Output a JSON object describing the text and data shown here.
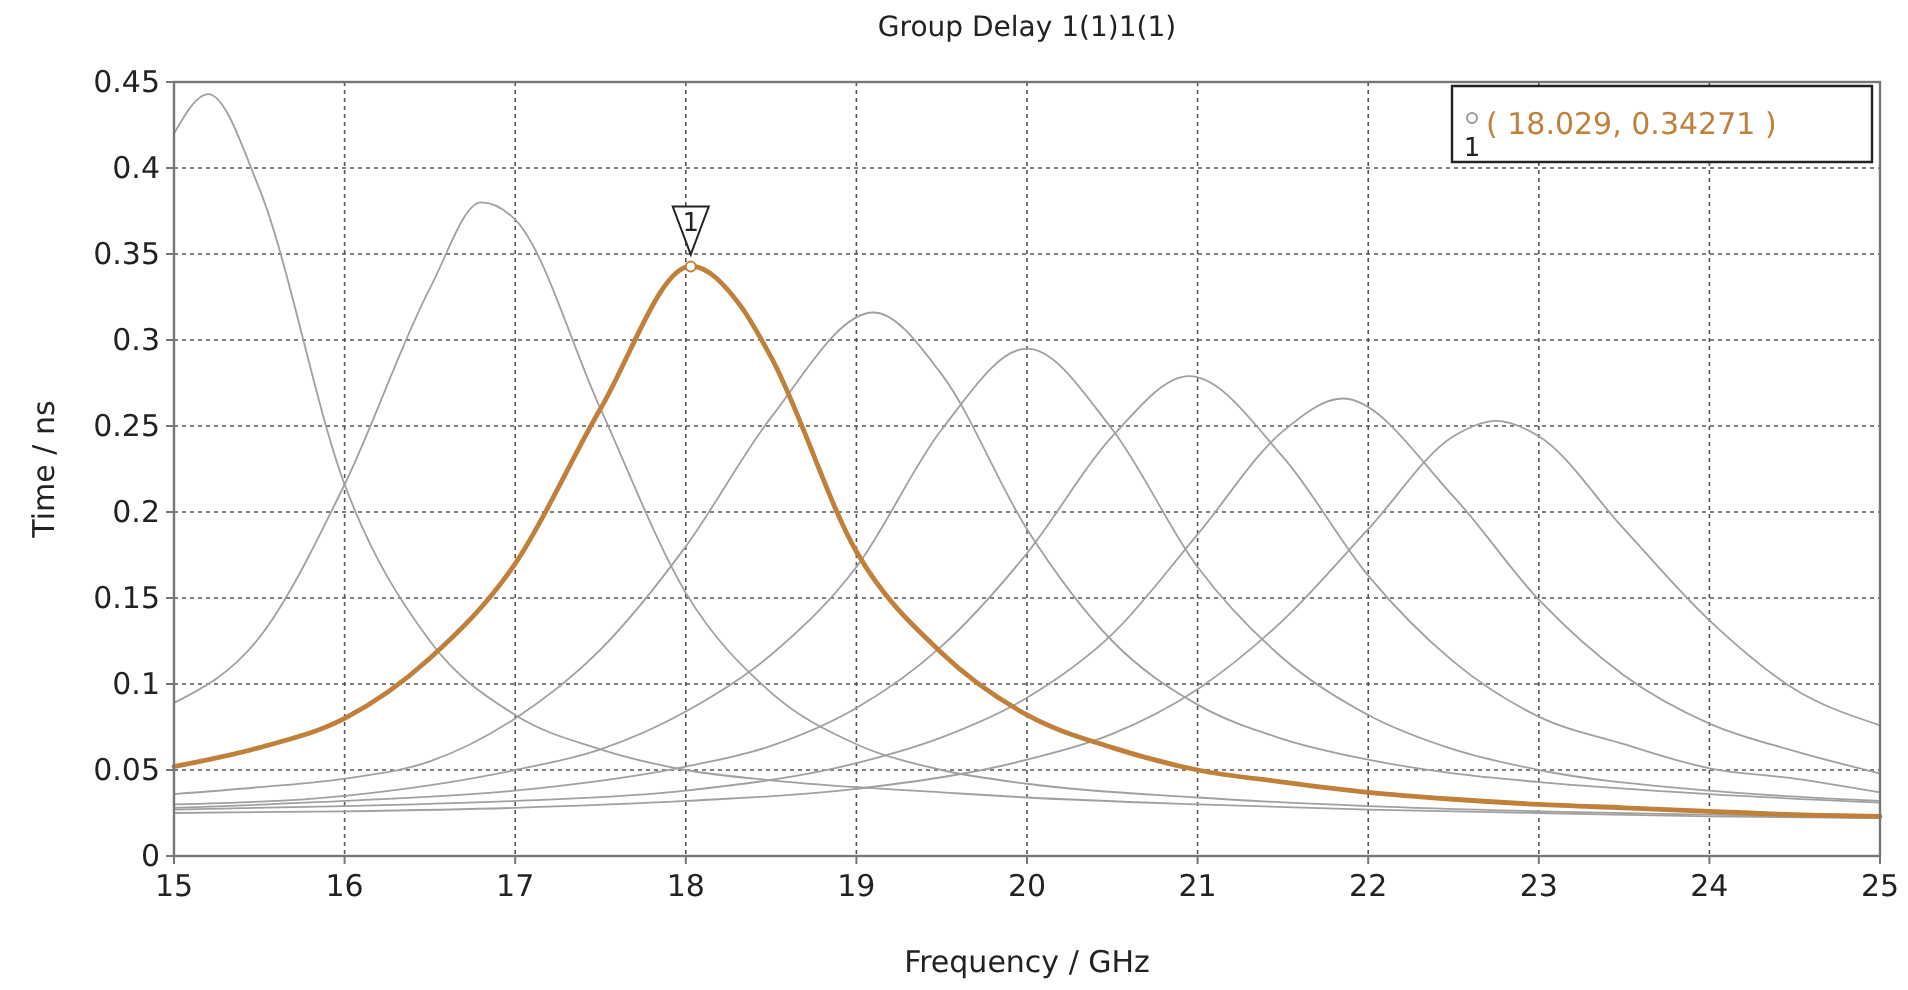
{
  "chart_data": {
    "type": "line",
    "title": "Group Delay 1(1)1(1)",
    "xlabel": "Frequency / GHz",
    "ylabel": "Time / ns",
    "xlim": [
      15,
      25
    ],
    "xticks": [
      15,
      16,
      17,
      18,
      19,
      20,
      21,
      22,
      23,
      24,
      25
    ],
    "ylim": [
      0,
      0.45
    ],
    "yticks": [
      0,
      0.05,
      0.1,
      0.15,
      0.2,
      0.25,
      0.3,
      0.35,
      0.4,
      0.45
    ],
    "grid": true,
    "marker": "none",
    "line_style": "solid",
    "series": [
      {
        "color": "#a0a0a0",
        "x": [
          15,
          15.2,
          15.5,
          16,
          16.5,
          17,
          17.5,
          18,
          18.5,
          19,
          19.5,
          20,
          21,
          22,
          23,
          24,
          25
        ],
        "values": [
          0.42,
          0.443,
          0.388,
          0.216,
          0.125,
          0.082,
          0.062,
          0.05,
          0.044,
          0.04,
          0.037,
          0.034,
          0.03,
          0.027,
          0.025,
          0.023,
          0.022
        ]
      },
      {
        "color": "#a0a0a0",
        "x": [
          15,
          15.5,
          16,
          16.5,
          16.8,
          17,
          17.5,
          18,
          18.5,
          19,
          19.5,
          20,
          21,
          22,
          23,
          24,
          25
        ],
        "values": [
          0.089,
          0.127,
          0.216,
          0.33,
          0.38,
          0.37,
          0.26,
          0.153,
          0.095,
          0.065,
          0.05,
          0.042,
          0.034,
          0.029,
          0.026,
          0.024,
          0.022
        ]
      },
      {
        "color": "#a0a0a0",
        "x": [
          15,
          15.5,
          16,
          16.5,
          17,
          17.5,
          18,
          18.5,
          19.1,
          19.5,
          20,
          20.5,
          21,
          21.5,
          22,
          22.5,
          23,
          24,
          25
        ],
        "values": [
          0.036,
          0.04,
          0.045,
          0.055,
          0.08,
          0.12,
          0.18,
          0.255,
          0.316,
          0.28,
          0.19,
          0.125,
          0.088,
          0.068,
          0.056,
          0.048,
          0.043,
          0.036,
          0.031
        ]
      },
      {
        "color": "#a0a0a0",
        "x": [
          15,
          16,
          17,
          17.5,
          18,
          18.5,
          19,
          19.5,
          20,
          20.5,
          21,
          21.5,
          22,
          22.5,
          23,
          24,
          25
        ],
        "values": [
          0.03,
          0.035,
          0.05,
          0.062,
          0.084,
          0.117,
          0.168,
          0.248,
          0.295,
          0.248,
          0.168,
          0.115,
          0.082,
          0.062,
          0.05,
          0.038,
          0.032
        ]
      },
      {
        "color": "#a0a0a0",
        "x": [
          15,
          16,
          17,
          18,
          18.5,
          19,
          19.5,
          20,
          20.5,
          20.95,
          21.5,
          22,
          22.5,
          23,
          23.5,
          24,
          24.5,
          25
        ],
        "values": [
          0.028,
          0.032,
          0.038,
          0.052,
          0.064,
          0.086,
          0.122,
          0.176,
          0.244,
          0.279,
          0.232,
          0.163,
          0.113,
          0.081,
          0.065,
          0.051,
          0.045,
          0.037
        ]
      },
      {
        "color": "#a0a0a0",
        "x": [
          15,
          16,
          17,
          18,
          19,
          19.5,
          20,
          20.5,
          21,
          21.5,
          21.85,
          22.5,
          23,
          23.5,
          24,
          24.5,
          25
        ],
        "values": [
          0.027,
          0.029,
          0.032,
          0.038,
          0.054,
          0.069,
          0.092,
          0.129,
          0.187,
          0.247,
          0.266,
          0.209,
          0.149,
          0.105,
          0.077,
          0.061,
          0.048
        ]
      },
      {
        "color": "#a0a0a0",
        "x": [
          15,
          16,
          17,
          18,
          19,
          20,
          20.5,
          21,
          21.5,
          22,
          22.5,
          22.75,
          23,
          23.5,
          24,
          24.5,
          25
        ],
        "values": [
          0.025,
          0.026,
          0.028,
          0.032,
          0.039,
          0.056,
          0.071,
          0.097,
          0.137,
          0.19,
          0.244,
          0.253,
          0.244,
          0.19,
          0.137,
          0.097,
          0.076
        ]
      },
      {
        "color": "#c0803a",
        "x": [
          15,
          15.5,
          16,
          16.5,
          17,
          17.5,
          18.03,
          18.32,
          18.5,
          19,
          19.5,
          20,
          20.5,
          21,
          21.5,
          22,
          22.5,
          23,
          23.5,
          24,
          24.5,
          25
        ],
        "values": [
          0.052,
          0.063,
          0.08,
          0.115,
          0.17,
          0.26,
          0.343,
          0.32,
          0.29,
          0.177,
          0.118,
          0.082,
          0.063,
          0.05,
          0.043,
          0.037,
          0.033,
          0.03,
          0.028,
          0.026,
          0.024,
          0.023
        ]
      }
    ],
    "annotations": [
      {
        "text": "1",
        "x": 18.029,
        "y": 0.34271
      },
      "( 18.029, 0.34271 )"
    ]
  }
}
